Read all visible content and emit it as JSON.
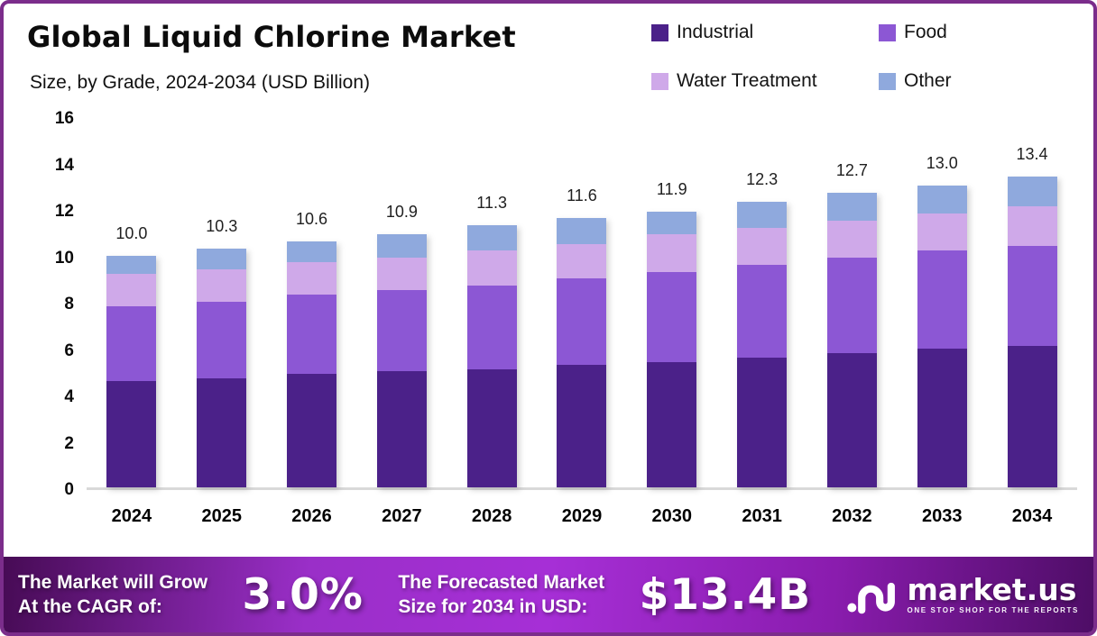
{
  "frame": {
    "border_color": "#7B2D8B"
  },
  "header": {
    "title": "Global Liquid Chlorine Market",
    "subtitle": "Size, by Grade, 2024-2034 (USD Billion)"
  },
  "legend": {
    "items": [
      {
        "label": "Industrial",
        "color": "#4B2189"
      },
      {
        "label": "Food",
        "color": "#8C57D4"
      },
      {
        "label": "Water Treatment",
        "color": "#CFA9E9"
      },
      {
        "label": "Other",
        "color": "#8FA9DD"
      }
    ]
  },
  "chart_data": {
    "type": "bar",
    "stacked": true,
    "title": "Global Liquid Chlorine Market Size, by Grade, 2024-2034 (USD Billion)",
    "categories": [
      "2024",
      "2025",
      "2026",
      "2027",
      "2028",
      "2029",
      "2030",
      "2031",
      "2032",
      "2033",
      "2034"
    ],
    "series": [
      {
        "name": "Industrial",
        "color": "#4B2189",
        "values": [
          4.6,
          4.7,
          4.9,
          5.0,
          5.1,
          5.3,
          5.4,
          5.6,
          5.8,
          6.0,
          6.1
        ]
      },
      {
        "name": "Food",
        "color": "#8C57D4",
        "values": [
          3.2,
          3.3,
          3.4,
          3.5,
          3.6,
          3.7,
          3.9,
          4.0,
          4.1,
          4.2,
          4.3
        ]
      },
      {
        "name": "Water Treatment",
        "color": "#CFA9E9",
        "values": [
          1.4,
          1.4,
          1.4,
          1.4,
          1.5,
          1.5,
          1.6,
          1.6,
          1.6,
          1.6,
          1.7
        ]
      },
      {
        "name": "Other",
        "color": "#8FA9DD",
        "values": [
          0.8,
          0.9,
          0.9,
          1.0,
          1.1,
          1.1,
          1.0,
          1.1,
          1.2,
          1.2,
          1.3
        ]
      }
    ],
    "totals_labels": [
      "10.0",
      "10.3",
      "10.6",
      "10.9",
      "11.3",
      "11.6",
      "11.9",
      "12.3",
      "12.7",
      "13.0",
      "13.4"
    ],
    "ylim": [
      0,
      16
    ],
    "yticks": [
      0,
      2,
      4,
      6,
      8,
      10,
      12,
      14,
      16
    ],
    "grid": false,
    "legend_position": "top-right",
    "baseline_color": "#D9D9D9"
  },
  "footer": {
    "cagr_label_line1": "The Market will Grow",
    "cagr_label_line2": "At the CAGR of:",
    "cagr_value": "3.0%",
    "forecast_label_line1": "The Forecasted Market",
    "forecast_label_line2": "Size for 2034 in USD:",
    "forecast_value": "$13.4B",
    "logo_text": "market.us",
    "logo_tagline": "ONE STOP SHOP FOR THE REPORTS",
    "gradient": [
      "#470B55",
      "#9A2FC8",
      "#A62FD6",
      "#8A1CAE",
      "#4E0D66"
    ]
  }
}
